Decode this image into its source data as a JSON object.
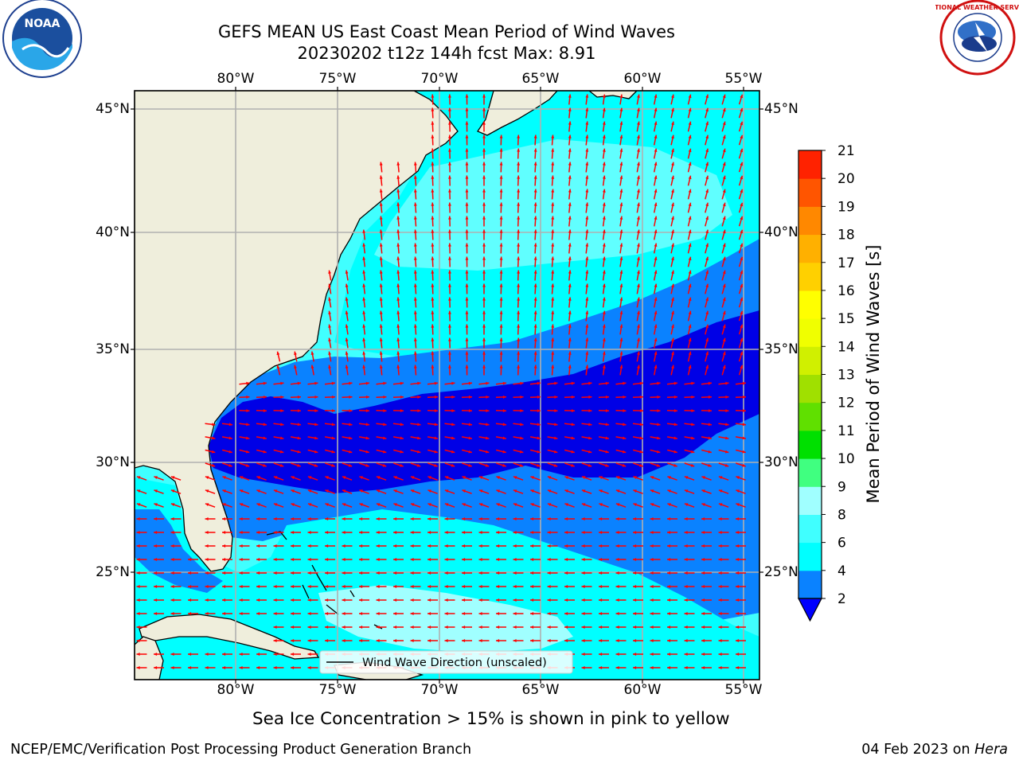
{
  "title": {
    "line1": "GEFS MEAN US East Coast Mean Period of Wind Waves",
    "line2": "20230202 t12z 144h fcst   Max: 8.91"
  },
  "map": {
    "lon_labels": [
      "80°W",
      "75°W",
      "70°W",
      "65°W",
      "60°W",
      "55°W"
    ],
    "lat_labels": [
      "45°N",
      "40°N",
      "35°N",
      "30°N",
      "25°N"
    ],
    "legend_label": "Wind Wave Direction (unscaled)"
  },
  "colorbar": {
    "label": "Mean Period of Wind Waves [s]",
    "ticks": [
      "2",
      "4",
      "6",
      "8",
      "9",
      "10",
      "11",
      "12",
      "13",
      "14",
      "15",
      "16",
      "17",
      "18",
      "19",
      "20",
      "21"
    ],
    "colors": [
      "#0a82ff",
      "#00ffff",
      "#40ffff",
      "#a0ffff",
      "#40ff80",
      "#00e000",
      "#60e000",
      "#a0e000",
      "#d0f000",
      "#f0ff00",
      "#ffff00",
      "#ffd000",
      "#ffb000",
      "#ff8800",
      "#ff5500",
      "#ff2200",
      "#ff0000"
    ],
    "extend_color": "#0000ff"
  },
  "colors": {
    "land": "#efeedc",
    "vector": "#ff0000",
    "grid": "#b0b0b0",
    "band_dark": "#0000e6",
    "band_blue": "#0a82ff",
    "band_cyan": "#00ffff",
    "band_light": "#40ffff"
  },
  "logos": {
    "noaa": "NOAA",
    "nws": "NATIONAL WEATHER SERVICE"
  },
  "caption": "Sea Ice Concentration > 15% is shown in pink to yellow",
  "footer": {
    "left": "NCEP/EMC/Verification Post Processing Product Generation Branch",
    "date": "04 Feb 2023 on ",
    "machine": "Hera"
  }
}
